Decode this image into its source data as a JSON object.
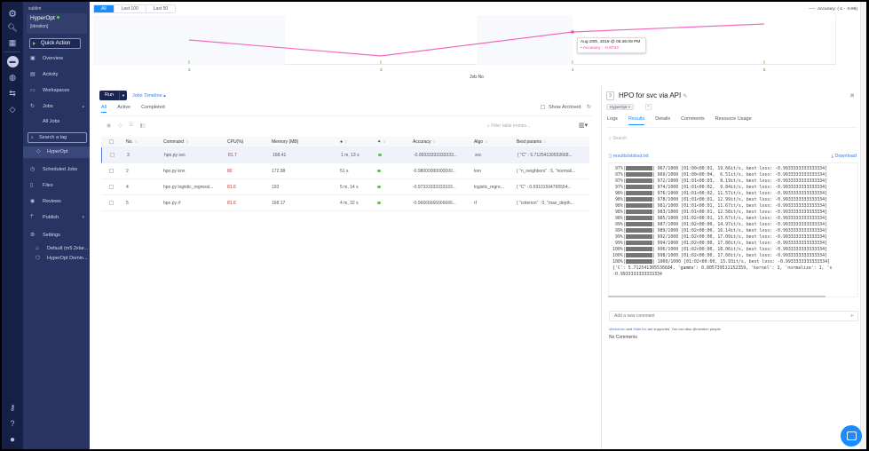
{
  "org": "sublim",
  "project": {
    "name": "HyperOpt",
    "subtitle": "[ideation]",
    "status_color": "#6ed04e"
  },
  "quick_action": "Quick Action",
  "sidebar": {
    "items": [
      {
        "label": "Overview",
        "icon": "overview-icon"
      },
      {
        "label": "Activity",
        "icon": "activity-icon"
      },
      {
        "label": "Workspaces",
        "icon": "monitor-icon"
      },
      {
        "label": "Jobs",
        "icon": "jobs-icon"
      },
      {
        "label": "All Jobs"
      },
      {
        "label": "HyperOpt",
        "icon": "tag-icon"
      },
      {
        "label": "Scheduled Jobs",
        "icon": "clock-icon"
      },
      {
        "label": "Files",
        "icon": "file-icon"
      },
      {
        "label": "Reviews",
        "icon": "eye-icon"
      },
      {
        "label": "Publish",
        "icon": "publish-icon"
      },
      {
        "label": "Settings",
        "icon": "gear-icon"
      },
      {
        "label": "Default (m5.2xlar...",
        "icon": "machine-icon"
      },
      {
        "label": "HyperOpt Domin...",
        "icon": "cube-icon"
      }
    ],
    "search_tag_placeholder": "Search a tag"
  },
  "chart": {
    "range_buttons": [
      "All",
      "Last 100",
      "Last 50"
    ],
    "legend": "Accuracy: (-1 - -0.96)",
    "x_axis_title": "Job No",
    "tooltip": {
      "date": "Aug 20th, 2019 @ 05:36:08 PM",
      "value": "• Accuracy : -0.9733"
    },
    "accent": "#e83e9f"
  },
  "chart_data": {
    "type": "line",
    "title": "",
    "xlabel": "Job No",
    "ylabel": "Accuracy",
    "categories": [
      "2",
      "3",
      "4",
      "5"
    ],
    "series": [
      {
        "name": "Accuracy",
        "values": [
          -0.98,
          -0.9933,
          -0.9733,
          -0.9667
        ]
      }
    ],
    "ylim": [
      -1,
      -0.96
    ],
    "legend_position": "top-right",
    "grid": false
  },
  "toolbar": {
    "run_label": "Run",
    "timeline_label": "Jobs Timeline ▴",
    "tabs": [
      "All",
      "Active",
      "Completed"
    ],
    "show_archived": "Show Archived",
    "filter_placeholder": "Filter table entries..."
  },
  "table": {
    "headers": [
      "No.",
      "Command",
      "CPU(%)",
      "Memory (MB)",
      "Accuracy",
      "Algo",
      "Best params"
    ],
    "rows": [
      {
        "no": "3",
        "command": "hpo.py svc",
        "cpu": "81.7",
        "memory": "168.41",
        "duration": "1 m, 13 s",
        "accuracy": "-0.99333333333333...",
        "algo": "svc",
        "params": "{ \"C\" : 5.71254130553668..."
      },
      {
        "no": "2",
        "command": "hpo.py knn",
        "cpu": "80",
        "memory": "172.98",
        "duration": "51 s",
        "accuracy": "-0.98000000000000...",
        "algo": "knn",
        "params": "{ \"n_neighbors\" : 5, \"normali..."
      },
      {
        "no": "4",
        "command": "hpo.py logistic_regressi...",
        "cpu": "81.6",
        "memory": "193",
        "duration": "5 m, 14 s",
        "accuracy": "-0.97333333333333...",
        "algo": "logistic_regre...",
        "params": "{ \"C\" : 0.69101594765554..."
      },
      {
        "no": "5",
        "command": "hpo.py rf",
        "cpu": "81.6",
        "memory": "168.17",
        "duration": "4 m, 32 s",
        "accuracy": "-0.96666666666666...",
        "algo": "rf",
        "params": "{ \"criterion\" : 0, \"max_depth..."
      }
    ]
  },
  "detail": {
    "job_no": "3",
    "title": "HPO for svc via API",
    "tag": "HyperOpt  ×",
    "tabs": [
      "Logs",
      "Results",
      "Details",
      "Comments",
      "Resource Usage"
    ],
    "search_placeholder": "Search",
    "file": "results/stdout.txt",
    "download": "Download",
    "log_lines": [
      [
        "97%",
        "967/1000 [01:00<00:01, 19.66it/s, best loss: -0.9933333333333334]"
      ],
      [
        "97%",
        "969/1000 [01:00<00:04,  6.51it/s, best loss: -0.9933333333333334]"
      ],
      [
        "97%",
        "972/1000 [01:01<00:03,  8.19it/s, best loss: -0.9933333333333334]"
      ],
      [
        "97%",
        "974/1000 [01:01<00:02,  9.84it/s, best loss: -0.9933333333333334]"
      ],
      [
        "98%",
        "976/1000 [01:01<00:02, 11.57it/s, best loss: -0.9933333333333334]"
      ],
      [
        "98%",
        "978/1000 [01:01<00:01, 12.99it/s, best loss: -0.9933333333333334]"
      ],
      [
        "98%",
        "981/1000 [01:01<00:01, 11.67it/s, best loss: -0.9933333333333334]"
      ],
      [
        "98%",
        "983/1000 [01:01<00:01, 12.58it/s, best loss: -0.9933333333333334]"
      ],
      [
        "98%",
        "985/1000 [01:02<00:01, 13.67it/s, best loss: -0.9933333333333334]"
      ],
      [
        "99%",
        "987/1000 [01:02<00:00, 14.97it/s, best loss: -0.9933333333333334]"
      ],
      [
        "99%",
        "989/1000 [01:02<00:00, 16.14it/s, best loss: -0.9933333333333334]"
      ],
      [
        "99%",
        "992/1000 [01:02<00:00, 17.09it/s, best loss: -0.9933333333333334]"
      ],
      [
        "99%",
        "994/1000 [01:02<00:00, 17.80it/s, best loss: -0.9933333333333334]"
      ],
      [
        "100%",
        "996/1000 [01:02<00:00, 18.06it/s, best loss: -0.9933333333333334]"
      ],
      [
        "100%",
        "998/1000 [01:02<00:00, 17.60it/s, best loss: -0.9933333333333334]"
      ],
      [
        "100%",
        "1000/1000 [01:02<00:00, 15.93it/s, best loss: -0.9933333333333334]"
      ]
    ],
    "log_tail": [
      "{'C': 5.712541305536684, 'gamma': 0.805739511152359, 'kernel': 3, 'normalize': 1, 's",
      "-0.9933333333333334"
    ],
    "comment_placeholder": "Add a new comment",
    "md_note": {
      "markdown": "Markdown",
      "and": " and ",
      "mathjax": "MathJax",
      "rest": " are supported. You can also @mention people."
    },
    "no_comments": "No Comments"
  }
}
